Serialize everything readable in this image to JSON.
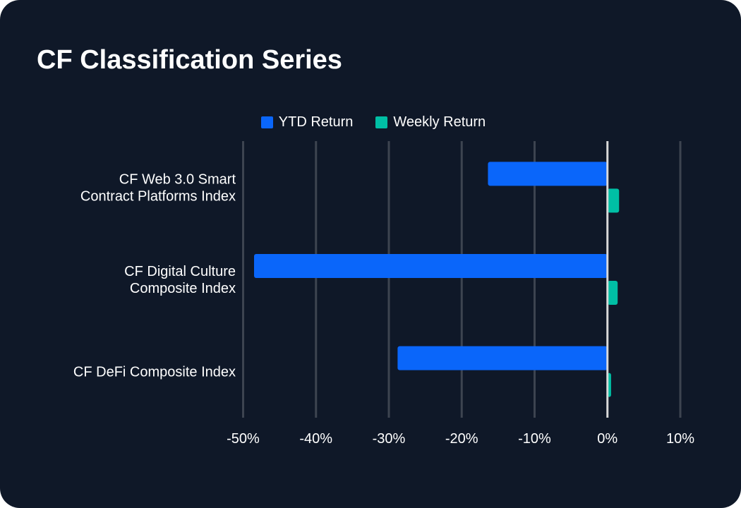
{
  "chart_data": {
    "type": "bar",
    "orientation": "horizontal",
    "title": "CF Classification Series",
    "categories": [
      [
        "CF Web 3.0 Smart",
        "Contract Platforms Index"
      ],
      [
        "CF Digital Culture",
        "Composite Index"
      ],
      [
        "CF DeFi Composite Index"
      ]
    ],
    "series": [
      {
        "name": "YTD Return",
        "color": "#0a66fa",
        "values": [
          -16.4,
          -48.5,
          -28.8
        ]
      },
      {
        "name": "Weekly Return",
        "color": "#00bfa5",
        "values": [
          1.6,
          1.4,
          0.5
        ]
      }
    ],
    "xlim": [
      -50,
      10
    ],
    "xticks": [
      -50,
      -40,
      -30,
      -20,
      -10,
      0,
      10
    ],
    "xtick_labels": [
      "-50%",
      "-40%",
      "-30%",
      "-20%",
      "-10%",
      "0%",
      "10%"
    ],
    "grid": true,
    "legend_position": "top-center"
  }
}
